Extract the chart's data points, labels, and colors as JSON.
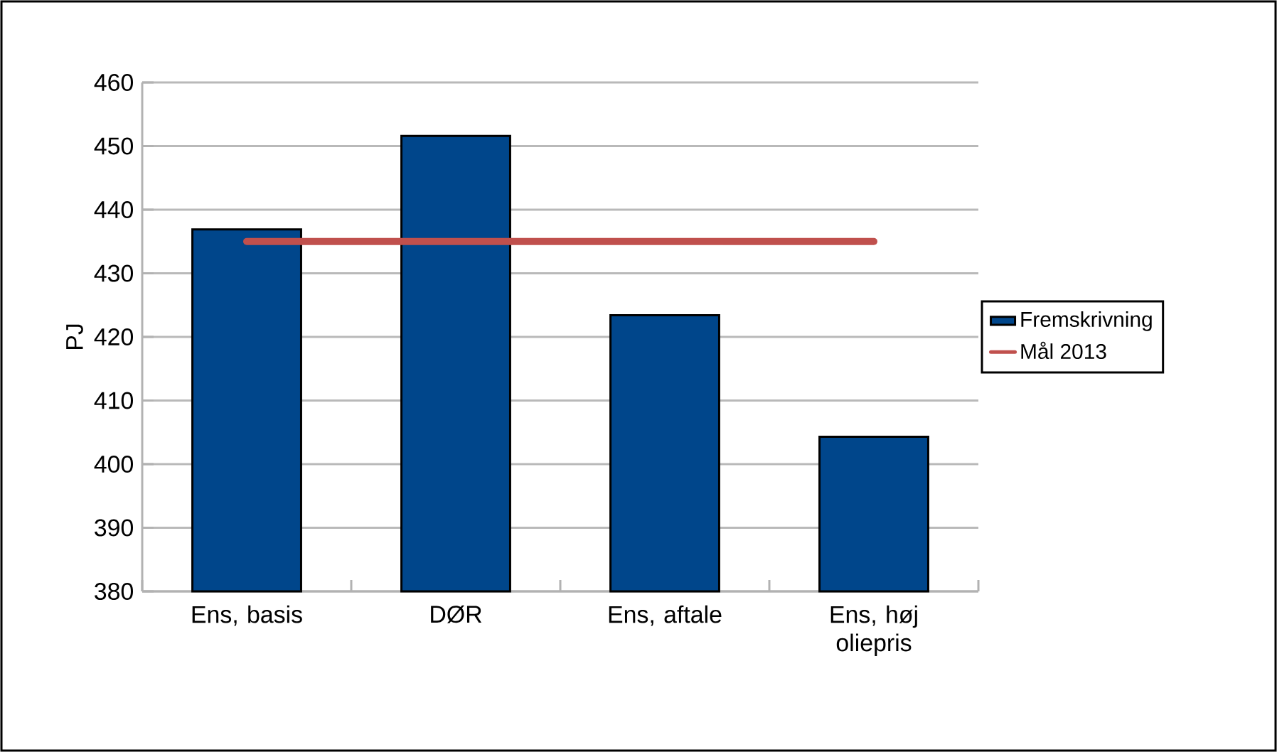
{
  "chart_data": {
    "type": "bar",
    "ylabel": "PJ",
    "categories": [
      "Ens, basis",
      "DØR",
      "Ens, aftale",
      "Ens, høj oliepris"
    ],
    "series": [
      {
        "name": "Fremskrivning",
        "color": "#00468b",
        "values": [
          436.9,
          451.6,
          423.4,
          404.3
        ]
      },
      {
        "name": "Mål 2013",
        "type": "line",
        "color": "#c0504d",
        "values": [
          435,
          435,
          435,
          435
        ]
      }
    ],
    "ylim": [
      380,
      460
    ],
    "yticks": [
      380,
      390,
      400,
      410,
      420,
      430,
      440,
      450,
      460
    ],
    "grid": "y",
    "legend": "right"
  }
}
